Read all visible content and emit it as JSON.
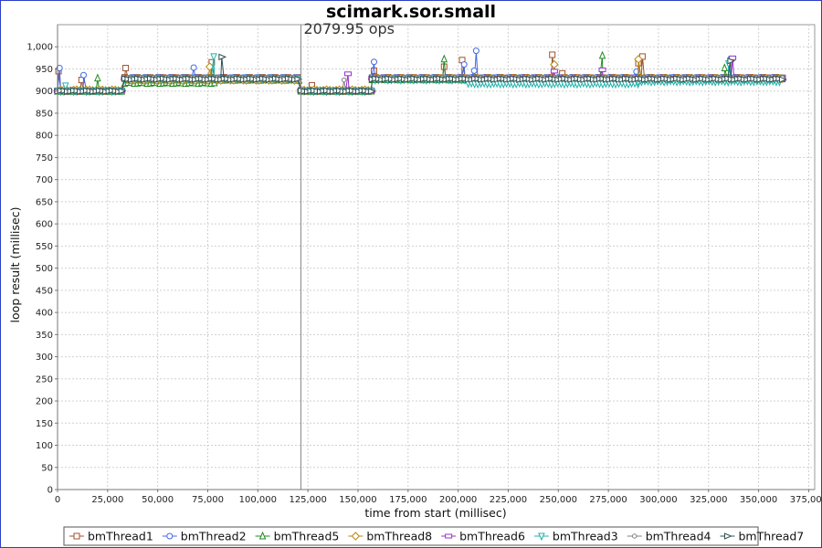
{
  "chart_data": {
    "type": "scatter",
    "title": "scimark.sor.small",
    "xlabel": "time from start (millisec)",
    "ylabel": "loop result (millisec)",
    "xlim": [
      0,
      378000
    ],
    "ylim": [
      0,
      1050
    ],
    "x_ticks": [
      0,
      25000,
      50000,
      75000,
      100000,
      125000,
      150000,
      175000,
      200000,
      225000,
      250000,
      275000,
      300000,
      325000,
      350000,
      375000
    ],
    "x_tick_labels": [
      "0",
      "25,000",
      "50,000",
      "75,000",
      "100,000",
      "125,000",
      "150,000",
      "175,000",
      "200,000",
      "225,000",
      "250,000",
      "275,000",
      "300,000",
      "325,000",
      "350,000",
      "375,000"
    ],
    "y_ticks": [
      0,
      50,
      100,
      150,
      200,
      250,
      300,
      350,
      400,
      450,
      500,
      550,
      600,
      650,
      700,
      750,
      800,
      850,
      900,
      950,
      1000
    ],
    "y_tick_labels": [
      "0",
      "50",
      "100",
      "150",
      "200",
      "250",
      "300",
      "350",
      "400",
      "450",
      "500",
      "550",
      "600",
      "650",
      "700",
      "750",
      "800",
      "850",
      "900",
      "950",
      "1,000"
    ],
    "grid": true,
    "legend_position": "bottom",
    "annotation": {
      "text": "2079.95 ops",
      "x": 121500
    },
    "series": [
      {
        "name": "bmThread1",
        "marker": "square",
        "color": "#a0522d",
        "segments": [
          [
            0,
            33500,
            900
          ],
          [
            33500,
            121500,
            930
          ],
          [
            121500,
            157000,
            900
          ],
          [
            157000,
            362000,
            930
          ]
        ],
        "outliers": [
          [
            500,
            945
          ],
          [
            12000,
            925
          ],
          [
            34000,
            952
          ],
          [
            77000,
            965
          ],
          [
            127000,
            913
          ],
          [
            158000,
            946
          ],
          [
            193000,
            955
          ],
          [
            202000,
            970
          ],
          [
            247000,
            982
          ],
          [
            252000,
            940
          ],
          [
            290000,
            963
          ],
          [
            292000,
            978
          ],
          [
            362000,
            930
          ]
        ]
      },
      {
        "name": "bmThread2",
        "marker": "circle",
        "color": "#4169e1",
        "segments": [
          [
            0,
            33500,
            900
          ],
          [
            33500,
            121500,
            930
          ],
          [
            121500,
            157000,
            900
          ],
          [
            157000,
            362000,
            930
          ]
        ],
        "outliers": [
          [
            1000,
            952
          ],
          [
            13000,
            936
          ],
          [
            68000,
            953
          ],
          [
            158000,
            966
          ],
          [
            203000,
            960
          ],
          [
            208000,
            946
          ],
          [
            209000,
            991
          ],
          [
            289000,
            944
          ],
          [
            336000,
            973
          ]
        ]
      },
      {
        "name": "bmThread5",
        "marker": "triangle-up",
        "color": "#228b22",
        "segments": [
          [
            0,
            33500,
            900
          ],
          [
            33500,
            79000,
            918
          ],
          [
            79000,
            121500,
            925
          ],
          [
            121500,
            157000,
            900
          ],
          [
            157000,
            362000,
            926
          ]
        ],
        "outliers": [
          [
            20000,
            929
          ],
          [
            193000,
            972
          ],
          [
            272000,
            980
          ],
          [
            333000,
            952
          ]
        ]
      },
      {
        "name": "bmThread8",
        "marker": "diamond",
        "color": "#b8860b",
        "segments": [
          [
            0,
            33500,
            902
          ],
          [
            33500,
            121500,
            925
          ],
          [
            121500,
            157000,
            902
          ],
          [
            157000,
            362000,
            928
          ]
        ],
        "outliers": [
          [
            76000,
            955
          ],
          [
            248000,
            960
          ],
          [
            290000,
            972
          ]
        ]
      },
      {
        "name": "bmThread6",
        "marker": "rect",
        "color": "#9932cc",
        "segments": [
          [
            0,
            33500,
            900
          ],
          [
            33500,
            121500,
            928
          ],
          [
            121500,
            157000,
            900
          ],
          [
            157000,
            362000,
            928
          ]
        ],
        "outliers": [
          [
            145000,
            939
          ],
          [
            248000,
            945
          ],
          [
            272000,
            948
          ],
          [
            337000,
            975
          ]
        ]
      },
      {
        "name": "bmThread3",
        "marker": "triangle-down",
        "color": "#20b2aa",
        "segments": [
          [
            0,
            33500,
            900
          ],
          [
            33500,
            121500,
            928
          ],
          [
            121500,
            157000,
            900
          ],
          [
            157000,
            205000,
            926
          ],
          [
            205000,
            290000,
            917
          ],
          [
            290000,
            362000,
            922
          ]
        ],
        "outliers": [
          [
            4000,
            912
          ],
          [
            78000,
            978
          ],
          [
            335000,
            962
          ]
        ]
      },
      {
        "name": "bmThread4",
        "marker": "circle-small",
        "color": "#808080",
        "segments": [
          [
            0,
            33500,
            901
          ],
          [
            33500,
            121500,
            929
          ],
          [
            121500,
            157000,
            901
          ],
          [
            157000,
            362000,
            929
          ]
        ],
        "outliers": [
          [
            143000,
            925
          ]
        ]
      },
      {
        "name": "bmThread7",
        "marker": "triangle-right",
        "color": "#2f4f4f",
        "segments": [
          [
            0,
            33500,
            900
          ],
          [
            33500,
            121500,
            927
          ],
          [
            121500,
            157000,
            900
          ],
          [
            157000,
            362000,
            927
          ]
        ],
        "outliers": [
          [
            82000,
            977
          ],
          [
            336000,
            968
          ]
        ]
      }
    ]
  }
}
